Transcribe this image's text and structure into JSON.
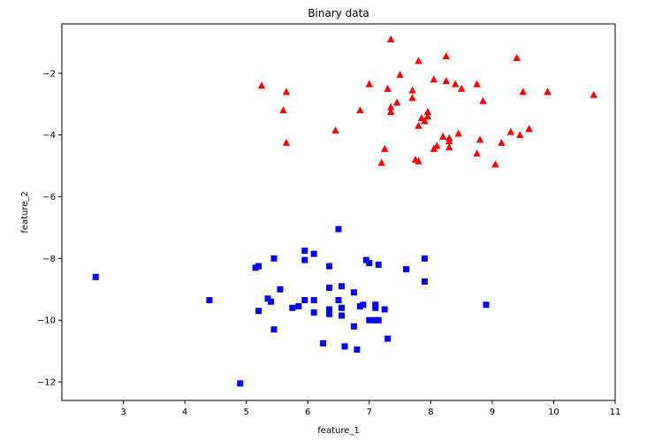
{
  "chart_data": {
    "type": "scatter",
    "title": "Binary data",
    "xlabel": "feature_1",
    "ylabel": "feature_2",
    "xlim": [
      2.0,
      11.0
    ],
    "ylim": [
      -12.6,
      -0.4
    ],
    "xticks": [
      3,
      4,
      5,
      6,
      7,
      8,
      9,
      10,
      11
    ],
    "yticks": [
      -12,
      -10,
      -8,
      -6,
      -4,
      -2
    ],
    "grid": false,
    "legend": "none",
    "series": [
      {
        "marker": "triangle",
        "color": "#ff0000",
        "points": [
          [
            7.35,
            -0.9
          ],
          [
            9.4,
            -1.5
          ],
          [
            8.25,
            -1.45
          ],
          [
            7.8,
            -1.6
          ],
          [
            7.5,
            -2.05
          ],
          [
            8.75,
            -2.35
          ],
          [
            8.05,
            -2.2
          ],
          [
            8.25,
            -2.25
          ],
          [
            8.4,
            -2.35
          ],
          [
            8.5,
            -2.5
          ],
          [
            7.0,
            -2.35
          ],
          [
            7.3,
            -2.5
          ],
          [
            7.7,
            -2.55
          ],
          [
            5.25,
            -2.4
          ],
          [
            5.65,
            -2.6
          ],
          [
            9.5,
            -2.6
          ],
          [
            9.9,
            -2.6
          ],
          [
            10.65,
            -2.7
          ],
          [
            7.7,
            -2.8
          ],
          [
            7.45,
            -2.95
          ],
          [
            7.35,
            -3.1
          ],
          [
            7.35,
            -3.25
          ],
          [
            8.85,
            -2.9
          ],
          [
            5.6,
            -3.2
          ],
          [
            6.85,
            -3.2
          ],
          [
            7.95,
            -3.25
          ],
          [
            7.95,
            -3.4
          ],
          [
            7.85,
            -3.45
          ],
          [
            7.9,
            -3.55
          ],
          [
            7.8,
            -3.7
          ],
          [
            6.45,
            -3.85
          ],
          [
            8.2,
            -4.05
          ],
          [
            8.3,
            -4.1
          ],
          [
            8.45,
            -3.95
          ],
          [
            8.3,
            -4.2
          ],
          [
            8.1,
            -4.35
          ],
          [
            8.05,
            -4.45
          ],
          [
            8.3,
            -4.4
          ],
          [
            8.8,
            -4.15
          ],
          [
            9.15,
            -4.25
          ],
          [
            9.3,
            -3.9
          ],
          [
            9.45,
            -4.0
          ],
          [
            9.6,
            -3.8
          ],
          [
            5.65,
            -4.25
          ],
          [
            7.25,
            -4.45
          ],
          [
            7.2,
            -4.9
          ],
          [
            7.75,
            -4.8
          ],
          [
            7.8,
            -4.85
          ],
          [
            8.75,
            -4.6
          ],
          [
            9.05,
            -4.95
          ]
        ]
      },
      {
        "marker": "square",
        "color": "#0000ff",
        "points": [
          [
            6.5,
            -7.05
          ],
          [
            5.95,
            -7.75
          ],
          [
            6.1,
            -7.85
          ],
          [
            5.45,
            -8.0
          ],
          [
            5.95,
            -8.05
          ],
          [
            7.9,
            -8.0
          ],
          [
            6.95,
            -8.05
          ],
          [
            7.0,
            -8.15
          ],
          [
            7.15,
            -8.2
          ],
          [
            6.35,
            -8.25
          ],
          [
            5.2,
            -8.25
          ],
          [
            5.15,
            -8.3
          ],
          [
            7.6,
            -8.35
          ],
          [
            2.55,
            -8.6
          ],
          [
            7.9,
            -8.75
          ],
          [
            6.55,
            -8.9
          ],
          [
            6.35,
            -8.95
          ],
          [
            5.55,
            -9.0
          ],
          [
            6.75,
            -9.1
          ],
          [
            4.4,
            -9.35
          ],
          [
            5.35,
            -9.3
          ],
          [
            5.4,
            -9.4
          ],
          [
            5.95,
            -9.35
          ],
          [
            6.1,
            -9.35
          ],
          [
            6.5,
            -9.35
          ],
          [
            5.75,
            -9.6
          ],
          [
            5.85,
            -9.55
          ],
          [
            6.35,
            -9.65
          ],
          [
            6.55,
            -9.6
          ],
          [
            7.1,
            -9.5
          ],
          [
            6.9,
            -9.5
          ],
          [
            6.85,
            -9.55
          ],
          [
            7.1,
            -9.6
          ],
          [
            7.25,
            -9.65
          ],
          [
            5.2,
            -9.7
          ],
          [
            6.1,
            -9.75
          ],
          [
            6.35,
            -9.8
          ],
          [
            6.55,
            -9.85
          ],
          [
            8.9,
            -9.5
          ],
          [
            7.0,
            -10.0
          ],
          [
            7.1,
            -10.0
          ],
          [
            7.15,
            -10.0
          ],
          [
            6.75,
            -10.2
          ],
          [
            5.45,
            -10.3
          ],
          [
            7.3,
            -10.6
          ],
          [
            6.25,
            -10.75
          ],
          [
            6.6,
            -10.85
          ],
          [
            6.8,
            -10.95
          ],
          [
            4.9,
            -12.05
          ]
        ]
      }
    ]
  }
}
